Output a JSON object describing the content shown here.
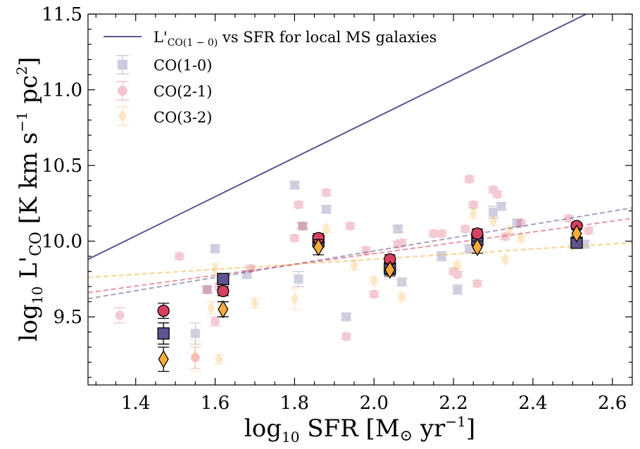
{
  "chart_data": {
    "type": "scatter",
    "xlabel_main": "log",
    "xlabel_sub": "10",
    "xlabel_rest": " SFR [M",
    "xlabel_sun": "⊙",
    "xlabel_unit": " yr",
    "xlabel_exp": "−1",
    "xlabel_close": "]",
    "ylabel_main": "log",
    "ylabel_sub": "10",
    "ylabel_rest": " L'",
    "ylabel_co": "CO",
    "ylabel_unit": " [K km s",
    "ylabel_exp": "−1",
    "ylabel_pc": " pc",
    "ylabel_exp2": "2",
    "ylabel_close": "]",
    "xlim": [
      1.28,
      2.65
    ],
    "ylim": [
      9.05,
      11.5
    ],
    "xticks": [
      "1.4",
      "1.6",
      "1.8",
      "2.0",
      "2.2",
      "2.4",
      "2.6"
    ],
    "xtick_values": [
      1.4,
      1.6,
      1.8,
      2.0,
      2.2,
      2.4,
      2.6
    ],
    "yticks": [
      "9.5",
      "10.0",
      "10.5",
      "11.0",
      "11.5"
    ],
    "ytick_values": [
      9.5,
      10.0,
      10.5,
      11.0,
      11.5
    ],
    "colors": {
      "co10": "#5e5490",
      "co21": "#d5415f",
      "co32": "#f7ac3a",
      "relation": "#5e5490"
    },
    "legend": {
      "relation_pre": "L'",
      "relation_sub": "CO(1 − 0)",
      "relation_post": " vs SFR for local MS galaxies",
      "co10": "CO(1-0)",
      "co21": "CO(2-1)",
      "co32": "CO(3-2)"
    },
    "relation_line": {
      "x": [
        1.28,
        2.65
      ],
      "y": [
        9.88,
        11.65
      ]
    },
    "fit_lines": [
      {
        "series": "CO(1-0)",
        "x": [
          1.28,
          2.65
        ],
        "y": [
          9.62,
          10.22
        ]
      },
      {
        "series": "CO(2-1)",
        "x": [
          1.28,
          2.65
        ],
        "y": [
          9.66,
          10.15
        ]
      },
      {
        "series": "CO(3-2)",
        "x": [
          1.28,
          2.65
        ],
        "y": [
          9.76,
          9.99
        ]
      }
    ],
    "series": [
      {
        "name": "CO(1-0)",
        "x": [
          1.55,
          1.6,
          1.58,
          1.68,
          1.8,
          1.81,
          1.82,
          1.86,
          1.88,
          1.93,
          2.06,
          2.07,
          2.17,
          2.21,
          2.24,
          2.3,
          2.32,
          2.36,
          2.53
        ],
        "y": [
          9.39,
          9.95,
          9.68,
          9.78,
          10.37,
          9.75,
          10.1,
          9.99,
          10.21,
          9.5,
          10.08,
          9.73,
          9.9,
          9.68,
          9.95,
          10.19,
          10.23,
          10.12,
          9.98
        ],
        "err": [
          0.07,
          0.02,
          0.02,
          0.02,
          0.02,
          0.05,
          0.02,
          0.02,
          0.02,
          0.02,
          0.02,
          0.02,
          0.03,
          0.03,
          0.02,
          0.04,
          0.02,
          0.02,
          0.02
        ]
      },
      {
        "name": "CO(2-1)",
        "x": [
          1.36,
          1.51,
          1.55,
          1.58,
          1.6,
          1.61,
          1.69,
          1.8,
          1.81,
          1.82,
          1.86,
          1.88,
          1.93,
          1.94,
          1.98,
          2.0,
          2.04,
          2.06,
          2.07,
          2.15,
          2.17,
          2.2,
          2.21,
          2.23,
          2.24,
          2.25,
          2.26,
          2.3,
          2.31,
          2.33,
          2.37,
          2.49,
          2.54
        ],
        "y": [
          9.51,
          9.9,
          9.23,
          9.68,
          9.47,
          9.7,
          9.82,
          10.02,
          10.24,
          10.1,
          10.02,
          10.32,
          9.37,
          10.1,
          9.94,
          9.65,
          9.85,
          9.98,
          9.99,
          10.05,
          10.05,
          9.8,
          9.78,
          10.08,
          10.41,
          10.24,
          9.72,
          10.34,
          10.31,
          10.03,
          10.12,
          10.15,
          10.07
        ],
        "err": [
          0.05,
          0.02,
          0.07,
          0.02,
          0.03,
          0.02,
          0.02,
          0.02,
          0.02,
          0.02,
          0.02,
          0.02,
          0.02,
          0.02,
          0.02,
          0.02,
          0.02,
          0.02,
          0.02,
          0.02,
          0.02,
          0.02,
          0.02,
          0.02,
          0.02,
          0.02,
          0.02,
          0.02,
          0.02,
          0.02,
          0.02,
          0.02,
          0.02
        ]
      },
      {
        "name": "CO(3-2)",
        "x": [
          1.55,
          1.6,
          1.59,
          1.61,
          1.7,
          1.8,
          1.86,
          1.88,
          1.95,
          2.0,
          2.03,
          2.07,
          2.21,
          2.25,
          2.3,
          2.33,
          2.34,
          2.37,
          2.5
        ],
        "y": [
          9.24,
          9.82,
          9.56,
          9.22,
          9.59,
          9.62,
          9.97,
          10.08,
          9.84,
          9.74,
          9.82,
          9.63,
          9.84,
          10.18,
          10.13,
          9.88,
          10.07,
          10.02,
          9.97
        ],
        "err": [
          0.1,
          0.03,
          0.04,
          0.03,
          0.03,
          0.07,
          0.02,
          0.02,
          0.03,
          0.02,
          0.02,
          0.02,
          0.02,
          0.03,
          0.02,
          0.02,
          0.02,
          0.02,
          0.02
        ]
      }
    ],
    "stacked": [
      {
        "series": "CO(1-0)",
        "x": [
          1.47,
          1.62,
          1.86,
          2.04,
          2.26,
          2.51
        ],
        "y": [
          9.39,
          9.75,
          10.0,
          9.82,
          10.01,
          9.99
        ],
        "err": [
          0.07,
          0.03,
          0.04,
          0.04,
          0.04,
          0.02
        ]
      },
      {
        "series": "CO(2-1)",
        "x": [
          1.47,
          1.62,
          1.86,
          2.04,
          2.26,
          2.51
        ],
        "y": [
          9.54,
          9.67,
          10.02,
          9.88,
          10.05,
          10.1
        ],
        "err": [
          0.05,
          0.03,
          0.03,
          0.03,
          0.03,
          0.02
        ]
      },
      {
        "series": "CO(3-2)",
        "x": [
          1.47,
          1.62,
          1.86,
          2.04,
          2.26,
          2.51
        ],
        "y": [
          9.22,
          9.55,
          9.96,
          9.81,
          9.96,
          10.05
        ],
        "err": [
          0.08,
          0.05,
          0.05,
          0.04,
          0.04,
          0.03
        ]
      }
    ]
  }
}
